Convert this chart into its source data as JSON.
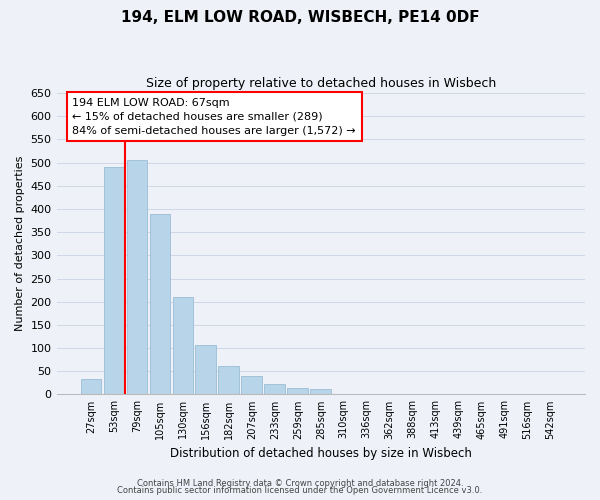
{
  "title": "194, ELM LOW ROAD, WISBECH, PE14 0DF",
  "subtitle": "Size of property relative to detached houses in Wisbech",
  "xlabel": "Distribution of detached houses by size in Wisbech",
  "ylabel": "Number of detached properties",
  "bar_labels": [
    "27sqm",
    "53sqm",
    "79sqm",
    "105sqm",
    "130sqm",
    "156sqm",
    "182sqm",
    "207sqm",
    "233sqm",
    "259sqm",
    "285sqm",
    "310sqm",
    "336sqm",
    "362sqm",
    "388sqm",
    "413sqm",
    "439sqm",
    "465sqm",
    "491sqm",
    "516sqm",
    "542sqm"
  ],
  "bar_values": [
    33,
    490,
    505,
    390,
    210,
    107,
    62,
    40,
    22,
    13,
    12,
    0,
    0,
    0,
    0,
    1,
    0,
    0,
    0,
    0,
    1
  ],
  "bar_color": "#b8d4e8",
  "bar_edge_color": "#9abdd8",
  "grid_color": "#d0d8e8",
  "background_color": "#eef2f8",
  "ylim": [
    0,
    650
  ],
  "yticks": [
    0,
    50,
    100,
    150,
    200,
    250,
    300,
    350,
    400,
    450,
    500,
    550,
    600,
    650
  ],
  "property_line_x": 1.5,
  "annotation_line1": "194 ELM LOW ROAD: 67sqm",
  "annotation_line2": "← 15% of detached houses are smaller (289)",
  "annotation_line3": "84% of semi-detached houses are larger (1,572) →",
  "footnote1": "Contains HM Land Registry data © Crown copyright and database right 2024.",
  "footnote2": "Contains public sector information licensed under the Open Government Licence v3.0."
}
